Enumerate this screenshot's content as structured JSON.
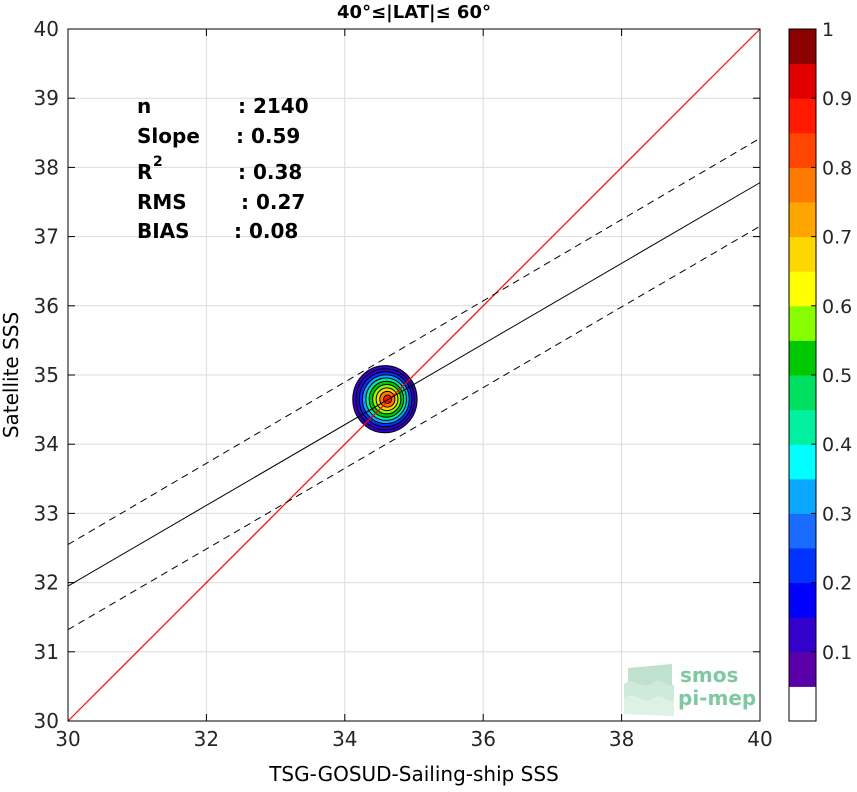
{
  "chart_data": {
    "type": "scatter",
    "title": "40°≤|LAT|≤ 60°",
    "xlabel": "TSG-GOSUD-Sailing-ship SSS",
    "ylabel": "Satellite SSS",
    "xlim": [
      30,
      40
    ],
    "ylim": [
      30,
      40
    ],
    "xticks": [
      "30",
      "32",
      "34",
      "36",
      "38",
      "40"
    ],
    "yticks": [
      "30",
      "31",
      "32",
      "33",
      "34",
      "35",
      "36",
      "37",
      "38",
      "39",
      "40"
    ],
    "grid": true,
    "stats": [
      {
        "label": "n",
        "value": ": 2140"
      },
      {
        "label": "Slope",
        "value": ": 0.59"
      },
      {
        "label": "R",
        "superscript": "2",
        "value": ": 0.38"
      },
      {
        "label": "RMS",
        "value": ": 0.27"
      },
      {
        "label": "BIAS",
        "value": ": 0.08"
      }
    ],
    "lines": {
      "identity": {
        "slope": 1,
        "intercept": 0,
        "color": "#ff0000"
      },
      "fit": {
        "x": [
          30,
          40
        ],
        "y": [
          31.95,
          37.78
        ],
        "color": "#000000"
      },
      "fit_upper": {
        "x": [
          30,
          40
        ],
        "y": [
          32.55,
          38.42
        ],
        "style": "dashed"
      },
      "fit_lower": {
        "x": [
          30,
          40
        ],
        "y": [
          31.32,
          37.15
        ],
        "style": "dashed"
      }
    },
    "density_contours": {
      "center": [
        34.58,
        34.65
      ],
      "levels": [
        0.05,
        0.1,
        0.2,
        0.3,
        0.4,
        0.5,
        0.6,
        0.7,
        0.8,
        0.9
      ],
      "outer_extent_x": [
        34.12,
        35.05
      ],
      "outer_extent_y": [
        34.15,
        35.12
      ]
    },
    "colorbar": {
      "range": [
        0,
        1
      ],
      "ticks": [
        "0.1",
        "0.2",
        "0.3",
        "0.4",
        "0.5",
        "0.6",
        "0.7",
        "0.8",
        "0.9",
        "1"
      ],
      "colors": [
        "#ffffff",
        "#5a00a8",
        "#3300cc",
        "#0000ff",
        "#0033ff",
        "#1a6bff",
        "#0aa8ff",
        "#00ffff",
        "#00f0a0",
        "#00e060",
        "#00c800",
        "#88ff00",
        "#ffff00",
        "#ffd700",
        "#ffa500",
        "#ff7a00",
        "#ff4500",
        "#ff1a00",
        "#e00000",
        "#8b0000"
      ]
    },
    "logo": {
      "line1": "smos",
      "line2": "pi-mep"
    }
  }
}
